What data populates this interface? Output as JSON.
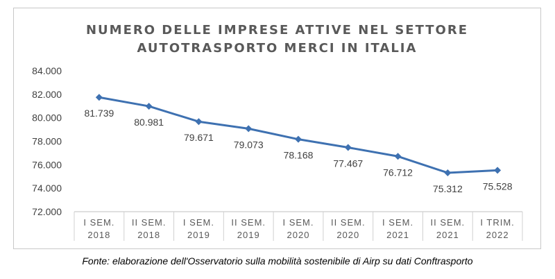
{
  "chart_data": {
    "type": "line",
    "title_lines": [
      "NUMERO DELLE IMPRESE ATTIVE NEL SETTORE",
      "AUTOTRASPORTO MERCI IN ITALIA"
    ],
    "categories": [
      [
        "I SEM.",
        "2018"
      ],
      [
        "II SEM.",
        "2018"
      ],
      [
        "I SEM.",
        "2019"
      ],
      [
        "II SEM.",
        "2019"
      ],
      [
        "I SEM.",
        "2020"
      ],
      [
        "II SEM.",
        "2020"
      ],
      [
        "I SEM.",
        "2021"
      ],
      [
        "II SEM.",
        "2021"
      ],
      [
        "I TRIM.",
        "2022"
      ]
    ],
    "series": [
      {
        "values": [
          81739,
          80981,
          79671,
          79073,
          78168,
          77467,
          76712,
          75312,
          75528
        ],
        "labels": [
          "81.739",
          "80.981",
          "79.671",
          "79.073",
          "78.168",
          "77.467",
          "76.712",
          "75.312",
          "75.528"
        ],
        "color": "#3e71b1"
      }
    ],
    "ylim": [
      72000,
      84000
    ],
    "yticks": [
      72000,
      74000,
      76000,
      78000,
      80000,
      82000,
      84000
    ],
    "ytick_labels": [
      "72.000",
      "74.000",
      "76.000",
      "78.000",
      "80.000",
      "82.000",
      "84.000"
    ],
    "grid": false,
    "xlabel": "",
    "ylabel": ""
  },
  "source_note": "Fonte: elaborazione dell'Osservatorio sulla mobilità sostenibile di Airp su dati Conftrasporto"
}
